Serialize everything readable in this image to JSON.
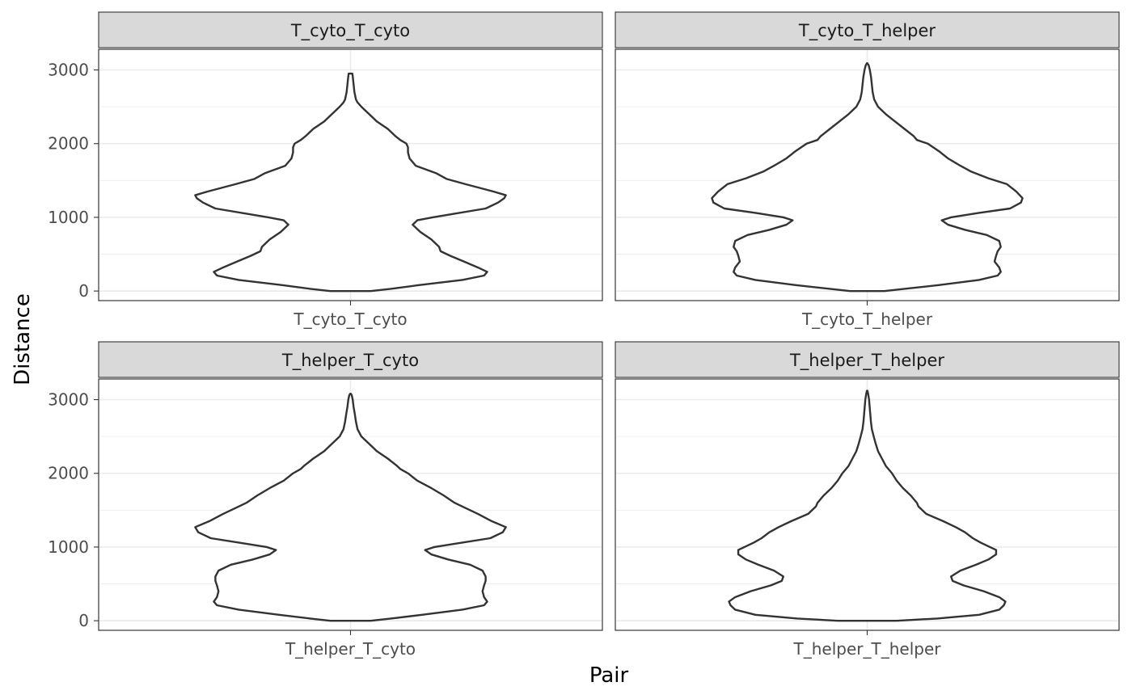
{
  "chart_data": {
    "type": "violin",
    "xlabel": "Pair",
    "ylabel": "Distance",
    "ylim": [
      -130,
      3280
    ],
    "y_ticks": [
      0,
      1000,
      2000,
      3000
    ],
    "y_tick_labels": [
      "0",
      "1000",
      "2000",
      "3000"
    ],
    "grid": true,
    "facets": [
      {
        "strip_label": "T_cyto_T_cyto",
        "category": "T_cyto_T_cyto",
        "max_half_width": 0.74,
        "profile": [
          [
            0,
            0.13
          ],
          [
            30,
            0.26
          ],
          [
            80,
            0.44
          ],
          [
            150,
            0.72
          ],
          [
            210,
            0.86
          ],
          [
            260,
            0.88
          ],
          [
            320,
            0.82
          ],
          [
            400,
            0.73
          ],
          [
            480,
            0.64
          ],
          [
            540,
            0.58
          ],
          [
            600,
            0.57
          ],
          [
            700,
            0.52
          ],
          [
            800,
            0.45
          ],
          [
            900,
            0.4
          ],
          [
            960,
            0.43
          ],
          [
            1000,
            0.53
          ],
          [
            1050,
            0.67
          ],
          [
            1120,
            0.87
          ],
          [
            1200,
            0.95
          ],
          [
            1260,
            0.99
          ],
          [
            1300,
            1.0
          ],
          [
            1350,
            0.92
          ],
          [
            1450,
            0.74
          ],
          [
            1520,
            0.62
          ],
          [
            1600,
            0.55
          ],
          [
            1700,
            0.42
          ],
          [
            1800,
            0.38
          ],
          [
            1880,
            0.37
          ],
          [
            1950,
            0.37
          ],
          [
            2000,
            0.36
          ],
          [
            2050,
            0.32
          ],
          [
            2100,
            0.29
          ],
          [
            2200,
            0.24
          ],
          [
            2300,
            0.17
          ],
          [
            2400,
            0.12
          ],
          [
            2500,
            0.07
          ],
          [
            2560,
            0.045
          ],
          [
            2600,
            0.035
          ],
          [
            2700,
            0.025
          ],
          [
            2800,
            0.02
          ],
          [
            2900,
            0.015
          ],
          [
            2950,
            0.012
          ]
        ]
      },
      {
        "strip_label": "T_cyto_T_helper",
        "category": "T_cyto_T_helper",
        "max_half_width": 0.74,
        "profile": [
          [
            0,
            0.11
          ],
          [
            30,
            0.24
          ],
          [
            80,
            0.46
          ],
          [
            150,
            0.72
          ],
          [
            210,
            0.84
          ],
          [
            260,
            0.86
          ],
          [
            320,
            0.85
          ],
          [
            400,
            0.82
          ],
          [
            480,
            0.83
          ],
          [
            540,
            0.84
          ],
          [
            600,
            0.86
          ],
          [
            680,
            0.85
          ],
          [
            760,
            0.77
          ],
          [
            830,
            0.63
          ],
          [
            900,
            0.52
          ],
          [
            960,
            0.48
          ],
          [
            1000,
            0.54
          ],
          [
            1060,
            0.72
          ],
          [
            1120,
            0.92
          ],
          [
            1200,
            0.99
          ],
          [
            1260,
            1.0
          ],
          [
            1350,
            0.96
          ],
          [
            1450,
            0.9
          ],
          [
            1530,
            0.78
          ],
          [
            1620,
            0.67
          ],
          [
            1700,
            0.6
          ],
          [
            1800,
            0.52
          ],
          [
            1900,
            0.46
          ],
          [
            2000,
            0.39
          ],
          [
            2050,
            0.32
          ],
          [
            2100,
            0.3
          ],
          [
            2200,
            0.24
          ],
          [
            2300,
            0.18
          ],
          [
            2400,
            0.12
          ],
          [
            2500,
            0.07
          ],
          [
            2600,
            0.045
          ],
          [
            2700,
            0.035
          ],
          [
            2800,
            0.03
          ],
          [
            2900,
            0.025
          ],
          [
            3000,
            0.017
          ],
          [
            3060,
            0.01
          ],
          [
            3090,
            0.002
          ]
        ]
      },
      {
        "strip_label": "T_helper_T_cyto",
        "category": "T_helper_T_cyto",
        "max_half_width": 0.74,
        "profile": [
          [
            0,
            0.13
          ],
          [
            30,
            0.26
          ],
          [
            80,
            0.46
          ],
          [
            150,
            0.72
          ],
          [
            210,
            0.86
          ],
          [
            260,
            0.88
          ],
          [
            320,
            0.86
          ],
          [
            400,
            0.85
          ],
          [
            480,
            0.86
          ],
          [
            540,
            0.87
          ],
          [
            600,
            0.87
          ],
          [
            680,
            0.85
          ],
          [
            760,
            0.77
          ],
          [
            830,
            0.63
          ],
          [
            900,
            0.52
          ],
          [
            960,
            0.48
          ],
          [
            1000,
            0.54
          ],
          [
            1060,
            0.72
          ],
          [
            1120,
            0.9
          ],
          [
            1200,
            0.98
          ],
          [
            1270,
            1.0
          ],
          [
            1350,
            0.91
          ],
          [
            1450,
            0.82
          ],
          [
            1550,
            0.72
          ],
          [
            1600,
            0.67
          ],
          [
            1700,
            0.6
          ],
          [
            1800,
            0.52
          ],
          [
            1900,
            0.43
          ],
          [
            2000,
            0.37
          ],
          [
            2060,
            0.32
          ],
          [
            2100,
            0.3
          ],
          [
            2200,
            0.24
          ],
          [
            2300,
            0.17
          ],
          [
            2400,
            0.12
          ],
          [
            2500,
            0.07
          ],
          [
            2600,
            0.045
          ],
          [
            2700,
            0.035
          ],
          [
            2800,
            0.028
          ],
          [
            2900,
            0.02
          ],
          [
            3000,
            0.014
          ],
          [
            3060,
            0.008
          ],
          [
            3080,
            0.002
          ]
        ]
      },
      {
        "strip_label": "T_helper_T_helper",
        "category": "T_helper_T_helper",
        "max_half_width": 0.74,
        "profile": [
          [
            0,
            0.19
          ],
          [
            30,
            0.45
          ],
          [
            80,
            0.72
          ],
          [
            150,
            0.85
          ],
          [
            210,
            0.88
          ],
          [
            260,
            0.89
          ],
          [
            320,
            0.85
          ],
          [
            400,
            0.75
          ],
          [
            480,
            0.62
          ],
          [
            540,
            0.55
          ],
          [
            600,
            0.54
          ],
          [
            680,
            0.6
          ],
          [
            760,
            0.7
          ],
          [
            830,
            0.78
          ],
          [
            900,
            0.83
          ],
          [
            960,
            0.83
          ],
          [
            1000,
            0.79
          ],
          [
            1060,
            0.73
          ],
          [
            1120,
            0.68
          ],
          [
            1200,
            0.63
          ],
          [
            1270,
            0.57
          ],
          [
            1350,
            0.49
          ],
          [
            1450,
            0.38
          ],
          [
            1550,
            0.33
          ],
          [
            1600,
            0.32
          ],
          [
            1700,
            0.28
          ],
          [
            1800,
            0.23
          ],
          [
            1900,
            0.19
          ],
          [
            2000,
            0.16
          ],
          [
            2100,
            0.12
          ],
          [
            2200,
            0.095
          ],
          [
            2300,
            0.07
          ],
          [
            2400,
            0.055
          ],
          [
            2500,
            0.042
          ],
          [
            2600,
            0.03
          ],
          [
            2700,
            0.024
          ],
          [
            2800,
            0.02
          ],
          [
            2900,
            0.016
          ],
          [
            3000,
            0.012
          ],
          [
            3080,
            0.006
          ],
          [
            3120,
            0.002
          ]
        ]
      }
    ]
  }
}
